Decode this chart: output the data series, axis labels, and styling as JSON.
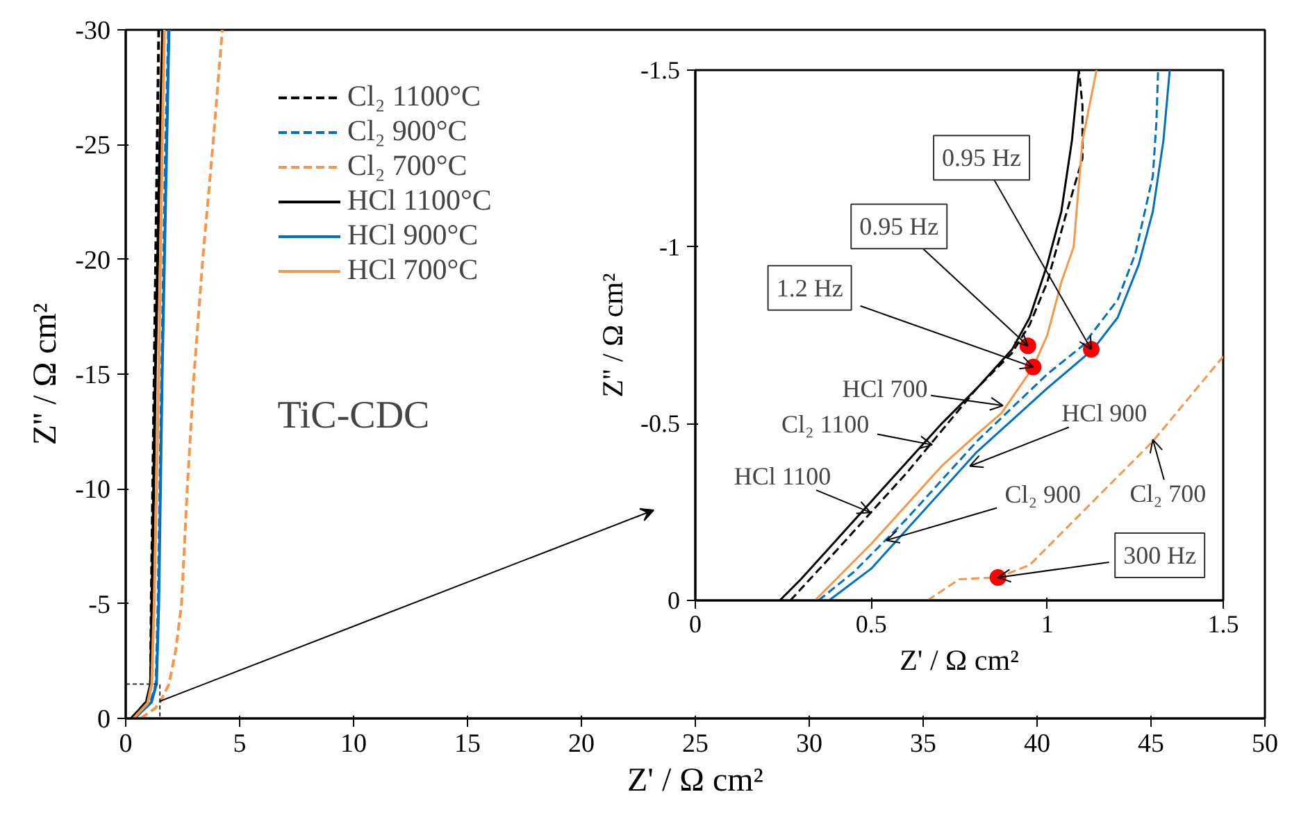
{
  "chart_data": [
    {
      "type": "line",
      "xlabel": "Z' / Ω cm²",
      "ylabel": "Z'' / Ω cm²",
      "xlim": [
        0,
        50
      ],
      "ylim": [
        0,
        -30
      ],
      "xticks": [
        0,
        5,
        10,
        15,
        20,
        25,
        30,
        35,
        40,
        45,
        50
      ],
      "yticks": [
        0,
        -5,
        -10,
        -15,
        -20,
        -25,
        -30
      ],
      "legend": "top left",
      "annotations": [
        "TiC-CDC"
      ],
      "series": [
        {
          "name": "Cl₂ 1100°C",
          "color": "#000000",
          "line_style": "dashed",
          "x": [
            0.27,
            0.95,
            1.09,
            1.12,
            1.25,
            1.38,
            1.45
          ],
          "values": [
            0,
            -0.78,
            -1.5,
            -5,
            -15,
            -25,
            -30
          ]
        },
        {
          "name": "Cl₂ 900°C",
          "color": "#0070c0",
          "line_style": "dashed",
          "x": [
            0.35,
            1.1,
            1.33,
            1.42,
            1.58,
            1.75,
            1.88
          ],
          "values": [
            0,
            -0.72,
            -1.5,
            -5,
            -15,
            -25,
            -30
          ]
        },
        {
          "name": "Cl₂ 700°C",
          "color": "#f79646",
          "line_style": "dashed",
          "x": [
            0.66,
            1.3,
            1.5,
            1.9,
            2.2,
            2.45,
            2.7,
            3.0,
            3.38,
            3.83,
            4.24
          ],
          "values": [
            0,
            -0.45,
            -0.69,
            -1.5,
            -3,
            -5,
            -10,
            -15,
            -20,
            -25,
            -30
          ]
        },
        {
          "name": "HCl 1100°C",
          "color": "#000000",
          "line_style": "solid",
          "x": [
            0.24,
            0.9,
            1.09,
            1.15,
            1.3,
            1.5,
            1.62
          ],
          "values": [
            0,
            -0.7,
            -1.5,
            -5,
            -15,
            -25,
            -30
          ]
        },
        {
          "name": "HCl 900°C",
          "color": "#0070c0",
          "line_style": "solid",
          "x": [
            0.38,
            1.13,
            1.35,
            1.45,
            1.6,
            1.8,
            1.9
          ],
          "values": [
            0,
            -0.71,
            -1.5,
            -5,
            -15,
            -25,
            -30
          ]
        },
        {
          "name": "HCl 700°C",
          "color": "#f79646",
          "line_style": "solid",
          "x": [
            0.34,
            0.96,
            1.14,
            1.25,
            1.45,
            1.6,
            1.7
          ],
          "values": [
            0,
            -0.66,
            -1.5,
            -5,
            -15,
            -25,
            -30
          ]
        }
      ]
    },
    {
      "type": "line",
      "xlabel": "Z' / Ω cm²",
      "ylabel": "Z'' / Ω cm²",
      "xlim": [
        0,
        1.5
      ],
      "ylim": [
        0,
        -1.5
      ],
      "xticks": [
        0,
        0.5,
        1,
        1.5
      ],
      "yticks": [
        0,
        -0.5,
        -1,
        -1.5
      ],
      "annotations": [
        {
          "text": "0.95 Hz",
          "x": 1.125,
          "y": -0.71
        },
        {
          "text": "0.95 Hz",
          "x": 0.945,
          "y": -0.72
        },
        {
          "text": "1.2 Hz",
          "x": 0.96,
          "y": -0.66
        },
        {
          "text": "300 Hz",
          "x": 0.86,
          "y": -0.065
        },
        {
          "text": "HCl 700",
          "x": 0.874,
          "y": -0.551
        },
        {
          "text": "Cl₂ 1100",
          "x": 0.673,
          "y": -0.44
        },
        {
          "text": "HCl 1100",
          "x": 0.497,
          "y": -0.249
        },
        {
          "text": "HCl 900",
          "x": 0.78,
          "y": -0.38
        },
        {
          "text": "Cl₂ 900",
          "x": 0.543,
          "y": -0.17
        },
        {
          "text": "Cl₂ 700",
          "x": 1.3,
          "y": -0.455
        }
      ],
      "series": [
        {
          "color": "#000000",
          "line_style": "dashed",
          "x": [
            0.27,
            0.4,
            0.5,
            0.6,
            0.7,
            0.8,
            0.9,
            0.95,
            1.0,
            1.05,
            1.1,
            1.1,
            1.09
          ],
          "values": [
            0,
            -0.14,
            -0.25,
            -0.36,
            -0.48,
            -0.6,
            -0.7,
            -0.78,
            -0.9,
            -1.08,
            -1.25,
            -1.4,
            -1.5
          ]
        },
        {
          "color": "#0070c0",
          "line_style": "dashed",
          "x": [
            0.35,
            0.45,
            0.6,
            0.8,
            1.0,
            1.1,
            1.2,
            1.25,
            1.3,
            1.31,
            1.315
          ],
          "values": [
            0,
            -0.08,
            -0.23,
            -0.45,
            -0.64,
            -0.72,
            -0.85,
            -0.98,
            -1.2,
            -1.35,
            -1.5
          ]
        },
        {
          "color": "#f79646",
          "line_style": "dashed",
          "x": [
            0.66,
            0.75,
            0.86,
            0.95,
            1.05,
            1.13,
            1.3,
            1.5
          ],
          "values": [
            0,
            -0.06,
            -0.065,
            -0.1,
            -0.2,
            -0.28,
            -0.45,
            -0.69
          ]
        },
        {
          "color": "#000000",
          "line_style": "solid",
          "x": [
            0.24,
            0.3,
            0.4,
            0.5,
            0.6,
            0.7,
            0.8,
            0.9,
            0.95,
            1.0,
            1.04,
            1.07,
            1.09
          ],
          "values": [
            0,
            -0.06,
            -0.17,
            -0.28,
            -0.39,
            -0.5,
            -0.6,
            -0.71,
            -0.8,
            -0.95,
            -1.1,
            -1.3,
            -1.5
          ]
        },
        {
          "color": "#0070c0",
          "line_style": "solid",
          "x": [
            0.38,
            0.42,
            0.5,
            0.6,
            0.8,
            1.0,
            1.13,
            1.2,
            1.26,
            1.3,
            1.33,
            1.348
          ],
          "values": [
            0,
            -0.03,
            -0.09,
            -0.2,
            -0.42,
            -0.6,
            -0.71,
            -0.8,
            -0.95,
            -1.1,
            -1.3,
            -1.5
          ]
        },
        {
          "color": "#f79646",
          "line_style": "solid",
          "x": [
            0.34,
            0.4,
            0.5,
            0.6,
            0.7,
            0.8,
            0.87,
            0.96,
            1.0,
            1.04,
            1.075,
            1.1,
            1.14
          ],
          "values": [
            0,
            -0.06,
            -0.16,
            -0.27,
            -0.38,
            -0.47,
            -0.53,
            -0.66,
            -0.75,
            -0.9,
            -1.0,
            -1.3,
            -1.5
          ]
        },
        {
          "type": "scatter",
          "marker": "circle",
          "color": "#ff0000",
          "x": [
            0.945,
            0.96,
            1.125,
            0.86
          ],
          "values": [
            -0.72,
            -0.66,
            -0.71,
            -0.065
          ]
        }
      ]
    }
  ]
}
